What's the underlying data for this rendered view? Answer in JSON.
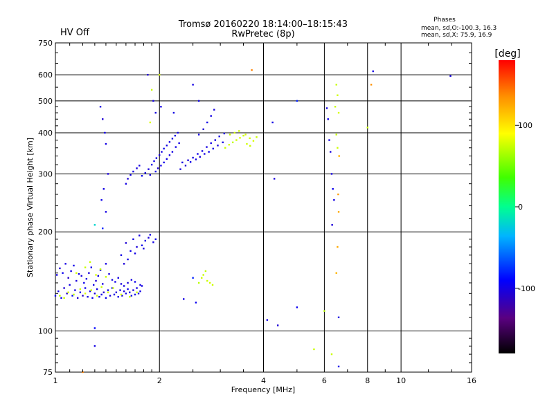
{
  "header": {
    "title": "Tromsø 20160220 18:14:00–18:15:43",
    "subtitle": "RwPretec (8p)",
    "hv_status": "HV Off",
    "hv_color": "#d40000",
    "phases_title": "Phases",
    "phases_line1": "mean, sd,O:-100.3, 16.3",
    "phases_line2": "mean, sd,X:  75.9, 16.9"
  },
  "colorbar": {
    "unit_label": "[deg]",
    "range": [
      -180,
      180
    ],
    "ticks": [
      100,
      0,
      -100
    ],
    "tick_labels": [
      "100",
      "0",
      "-100"
    ]
  },
  "chart_data": {
    "type": "scatter",
    "title": "Tromsø 20160220 18:14:00–18:15:43",
    "subtitle": "RwPretec (8p)",
    "xlabel": "Frequency [MHz]",
    "ylabel": "Stationary phase Virtual Height [km]",
    "x_scale": "log",
    "y_scale": "log",
    "xlim": [
      1,
      16
    ],
    "ylim": [
      75,
      750
    ],
    "x_ticks": [
      1,
      2,
      4,
      6,
      8,
      10,
      16
    ],
    "x_tick_labels": [
      "1",
      "2",
      "4",
      "6",
      "8",
      "10",
      "16"
    ],
    "y_ticks": [
      75,
      100,
      200,
      300,
      400,
      500,
      600,
      750
    ],
    "y_tick_labels": [
      "75",
      "100",
      "200",
      "300",
      "400",
      "500",
      "600",
      "750"
    ],
    "grid": true,
    "color_scale": "phase [deg], -180 (black) to 180 (red)",
    "series": [
      {
        "points": [
          [
            1.0,
            128,
            -95
          ],
          [
            1.02,
            132,
            -100
          ],
          [
            1.04,
            126,
            -95
          ],
          [
            1.06,
            135,
            -105
          ],
          [
            1.08,
            130,
            -110
          ],
          [
            1.1,
            138,
            -100
          ],
          [
            1.12,
            128,
            -90
          ],
          [
            1.14,
            133,
            -100
          ],
          [
            1.16,
            126,
            -105
          ],
          [
            1.18,
            131,
            -98
          ],
          [
            1.2,
            128,
            -110
          ],
          [
            1.22,
            135,
            -95
          ],
          [
            1.24,
            127,
            -100
          ],
          [
            1.26,
            132,
            -102
          ],
          [
            1.28,
            126,
            -98
          ],
          [
            1.3,
            130,
            -105
          ],
          [
            1.32,
            134,
            -100
          ],
          [
            1.34,
            127,
            -95
          ],
          [
            1.36,
            129,
            -100
          ],
          [
            1.38,
            131,
            -108
          ],
          [
            1.4,
            126,
            -97
          ],
          [
            1.42,
            133,
            -100
          ],
          [
            1.44,
            128,
            -103
          ],
          [
            1.46,
            135,
            -96
          ],
          [
            1.48,
            129,
            -100
          ],
          [
            1.5,
            131,
            -104
          ],
          [
            1.52,
            127,
            -100
          ],
          [
            1.54,
            133,
            -99
          ],
          [
            1.56,
            128,
            -101
          ],
          [
            1.58,
            132,
            -103
          ],
          [
            1.6,
            130,
            -100
          ],
          [
            1.62,
            134,
            -97
          ],
          [
            1.64,
            131,
            -102
          ],
          [
            1.66,
            128,
            -100
          ],
          [
            1.68,
            133,
            -105
          ],
          [
            1.7,
            129,
            -98
          ],
          [
            1.72,
            135,
            -100
          ],
          [
            1.74,
            130,
            -102
          ],
          [
            1.76,
            132,
            -99
          ],
          [
            1.78,
            137,
            -100
          ],
          [
            1.01,
            148,
            -100
          ],
          [
            1.03,
            155,
            -105
          ],
          [
            1.05,
            150,
            -95
          ],
          [
            1.07,
            160,
            -100
          ],
          [
            1.09,
            145,
            -110
          ],
          [
            1.11,
            152,
            -100
          ],
          [
            1.13,
            158,
            -98
          ],
          [
            1.15,
            142,
            -104
          ],
          [
            1.17,
            149,
            -100
          ],
          [
            1.19,
            147,
            -102
          ],
          [
            1.21,
            140,
            -96
          ],
          [
            1.23,
            144,
            -100
          ],
          [
            1.25,
            150,
            -103
          ],
          [
            1.27,
            156,
            -99
          ],
          [
            1.29,
            138,
            -100
          ],
          [
            1.31,
            142,
            -105
          ],
          [
            1.33,
            147,
            -100
          ],
          [
            1.35,
            153,
            -97
          ],
          [
            1.37,
            139,
            -101
          ],
          [
            1.4,
            160,
            -100
          ],
          [
            1.43,
            149,
            -103
          ],
          [
            1.46,
            143,
            -100
          ],
          [
            1.49,
            141,
            -98
          ],
          [
            1.52,
            145,
            -100
          ],
          [
            1.55,
            139,
            -102
          ],
          [
            1.58,
            137,
            -100
          ],
          [
            1.62,
            140,
            -104
          ],
          [
            1.66,
            143,
            -100
          ],
          [
            1.7,
            141,
            -97
          ],
          [
            1.76,
            138,
            -100
          ],
          [
            1.03,
            128,
            70
          ],
          [
            1.06,
            126,
            75
          ],
          [
            1.09,
            131,
            78
          ],
          [
            1.13,
            129,
            72
          ],
          [
            1.18,
            134,
            76
          ],
          [
            1.22,
            130,
            80
          ],
          [
            1.27,
            133,
            74
          ],
          [
            1.32,
            128,
            77
          ],
          [
            1.36,
            136,
            75
          ],
          [
            1.42,
            131,
            79
          ],
          [
            1.15,
            150,
            78
          ],
          [
            1.22,
            156,
            74
          ],
          [
            1.26,
            162,
            76
          ],
          [
            1.31,
            148,
            80
          ],
          [
            1.35,
            154,
            72
          ],
          [
            1.4,
            146,
            75
          ],
          [
            1.47,
            135,
            76
          ],
          [
            1.55,
            129,
            78
          ],
          [
            1.64,
            127,
            74
          ],
          [
            1.72,
            131,
            76
          ],
          [
            1.55,
            170,
            -100
          ],
          [
            1.6,
            185,
            -105
          ],
          [
            1.65,
            175,
            -98
          ],
          [
            1.68,
            190,
            -100
          ],
          [
            1.72,
            180,
            -103
          ],
          [
            1.75,
            195,
            -100
          ],
          [
            1.78,
            182,
            -97
          ],
          [
            1.82,
            188,
            -100
          ],
          [
            1.86,
            192,
            -102
          ],
          [
            1.92,
            186,
            -100
          ],
          [
            1.58,
            160,
            -104
          ],
          [
            1.62,
            165,
            -100
          ],
          [
            1.7,
            172,
            -99
          ],
          [
            1.8,
            178,
            -101
          ],
          [
            1.88,
            196,
            -100
          ],
          [
            1.95,
            190,
            -98
          ],
          [
            1.6,
            280,
            -100
          ],
          [
            1.62,
            290,
            -105
          ],
          [
            1.65,
            298,
            -98
          ],
          [
            1.68,
            305,
            -100
          ],
          [
            1.72,
            312,
            -103
          ],
          [
            1.75,
            318,
            -100
          ],
          [
            1.78,
            296,
            -97
          ],
          [
            1.82,
            302,
            -100
          ],
          [
            1.86,
            310,
            -102
          ],
          [
            1.9,
            320,
            -100
          ],
          [
            1.93,
            328,
            -98
          ],
          [
            1.96,
            335,
            -100
          ],
          [
            2.0,
            342,
            -104
          ],
          [
            2.03,
            350,
            -100
          ],
          [
            2.06,
            358,
            -97
          ],
          [
            2.1,
            366,
            -100
          ],
          [
            2.14,
            375,
            -101
          ],
          [
            2.18,
            384,
            -100
          ],
          [
            2.22,
            392,
            -99
          ],
          [
            2.26,
            400,
            -100
          ],
          [
            1.95,
            305,
            -100
          ],
          [
            1.98,
            312,
            -105
          ],
          [
            2.02,
            318,
            -100
          ],
          [
            2.06,
            325,
            -98
          ],
          [
            2.1,
            333,
            -100
          ],
          [
            2.14,
            342,
            -102
          ],
          [
            2.18,
            350,
            -100
          ],
          [
            2.23,
            362,
            -99
          ],
          [
            2.28,
            372,
            -100
          ],
          [
            1.88,
            298,
            -101
          ],
          [
            2.3,
            310,
            -100
          ],
          [
            2.38,
            318,
            -105
          ],
          [
            2.46,
            326,
            -98
          ],
          [
            2.55,
            332,
            -100
          ],
          [
            2.62,
            338,
            -103
          ],
          [
            2.7,
            345,
            -100
          ],
          [
            2.78,
            350,
            -97
          ],
          [
            2.86,
            358,
            -100
          ],
          [
            2.95,
            366,
            -102
          ],
          [
            3.05,
            374,
            -100
          ],
          [
            2.33,
            325,
            -100
          ],
          [
            2.42,
            330,
            -104
          ],
          [
            2.5,
            336,
            -100
          ],
          [
            2.58,
            345,
            -98
          ],
          [
            2.66,
            352,
            -100
          ],
          [
            2.74,
            362,
            -101
          ],
          [
            2.82,
            372,
            -100
          ],
          [
            2.9,
            380,
            -99
          ],
          [
            2.98,
            390,
            -100
          ],
          [
            3.08,
            398,
            -102
          ],
          [
            2.6,
            395,
            -100
          ],
          [
            2.68,
            410,
            -105
          ],
          [
            2.75,
            430,
            -98
          ],
          [
            2.82,
            450,
            -100
          ],
          [
            2.88,
            470,
            -103
          ],
          [
            3.1,
            360,
            75
          ],
          [
            3.18,
            368,
            78
          ],
          [
            3.26,
            374,
            72
          ],
          [
            3.34,
            380,
            76
          ],
          [
            3.42,
            386,
            80
          ],
          [
            3.5,
            392,
            74
          ],
          [
            3.58,
            370,
            77
          ],
          [
            3.66,
            365,
            75
          ],
          [
            3.74,
            378,
            79
          ],
          [
            3.82,
            388,
            76
          ],
          [
            3.2,
            395,
            74
          ],
          [
            3.3,
            400,
            78
          ],
          [
            3.4,
            405,
            75
          ],
          [
            3.55,
            395,
            80
          ],
          [
            3.65,
            385,
            76
          ],
          [
            1.35,
            480,
            -100
          ],
          [
            1.37,
            440,
            -105
          ],
          [
            1.39,
            400,
            -98
          ],
          [
            1.4,
            370,
            -100
          ],
          [
            1.42,
            300,
            -103
          ],
          [
            1.38,
            270,
            -100
          ],
          [
            1.36,
            250,
            -97
          ],
          [
            1.4,
            230,
            -100
          ],
          [
            1.37,
            205,
            -80
          ],
          [
            1.85,
            600,
            -105
          ],
          [
            1.9,
            540,
            75
          ],
          [
            1.92,
            500,
            -100
          ],
          [
            1.95,
            460,
            -102
          ],
          [
            1.88,
            430,
            80
          ],
          [
            2.02,
            480,
            -100
          ],
          [
            2.0,
            600,
            78
          ],
          [
            2.2,
            460,
            -100
          ],
          [
            2.5,
            560,
            -100
          ],
          [
            2.6,
            500,
            -99
          ],
          [
            3.7,
            620,
            140
          ],
          [
            4.25,
            430,
            -100
          ],
          [
            4.3,
            290,
            -102
          ],
          [
            4.1,
            108,
            -100
          ],
          [
            4.4,
            104,
            -105
          ],
          [
            5.0,
            500,
            -80
          ],
          [
            5.0,
            118,
            -95
          ],
          [
            5.6,
            88,
            75
          ],
          [
            6.1,
            475,
            -100
          ],
          [
            6.15,
            440,
            -98
          ],
          [
            6.2,
            380,
            -100
          ],
          [
            6.25,
            350,
            -102
          ],
          [
            6.3,
            300,
            -100
          ],
          [
            6.35,
            270,
            -97
          ],
          [
            6.4,
            250,
            -100
          ],
          [
            6.32,
            210,
            -104
          ],
          [
            6.5,
            560,
            75
          ],
          [
            6.55,
            520,
            76
          ],
          [
            6.45,
            480,
            74
          ],
          [
            6.6,
            460,
            78
          ],
          [
            6.5,
            395,
            75
          ],
          [
            6.55,
            360,
            76
          ],
          [
            6.62,
            340,
            120
          ],
          [
            6.58,
            260,
            130
          ],
          [
            6.6,
            230,
            125
          ],
          [
            6.55,
            180,
            125
          ],
          [
            6.5,
            150,
            120
          ],
          [
            6.6,
            110,
            -100
          ],
          [
            6.6,
            78,
            -98
          ],
          [
            6.3,
            85,
            75
          ],
          [
            6.0,
            115,
            70
          ],
          [
            8.2,
            560,
            135
          ],
          [
            8.3,
            615,
            -100
          ],
          [
            8.0,
            415,
            75
          ],
          [
            13.9,
            595,
            -100
          ],
          [
            2.35,
            125,
            -100
          ],
          [
            2.55,
            122,
            -95
          ],
          [
            2.6,
            140,
            70
          ],
          [
            2.65,
            145,
            76
          ],
          [
            2.75,
            142,
            75
          ],
          [
            2.8,
            140,
            78
          ],
          [
            2.72,
            152,
            72
          ],
          [
            2.68,
            148,
            74
          ],
          [
            2.85,
            138,
            76
          ],
          [
            2.5,
            145,
            -80
          ],
          [
            1.3,
            102,
            -90
          ],
          [
            1.3,
            90,
            -100
          ],
          [
            1.3,
            210,
            -20
          ],
          [
            1.2,
            75,
            140
          ]
        ]
      }
    ]
  }
}
